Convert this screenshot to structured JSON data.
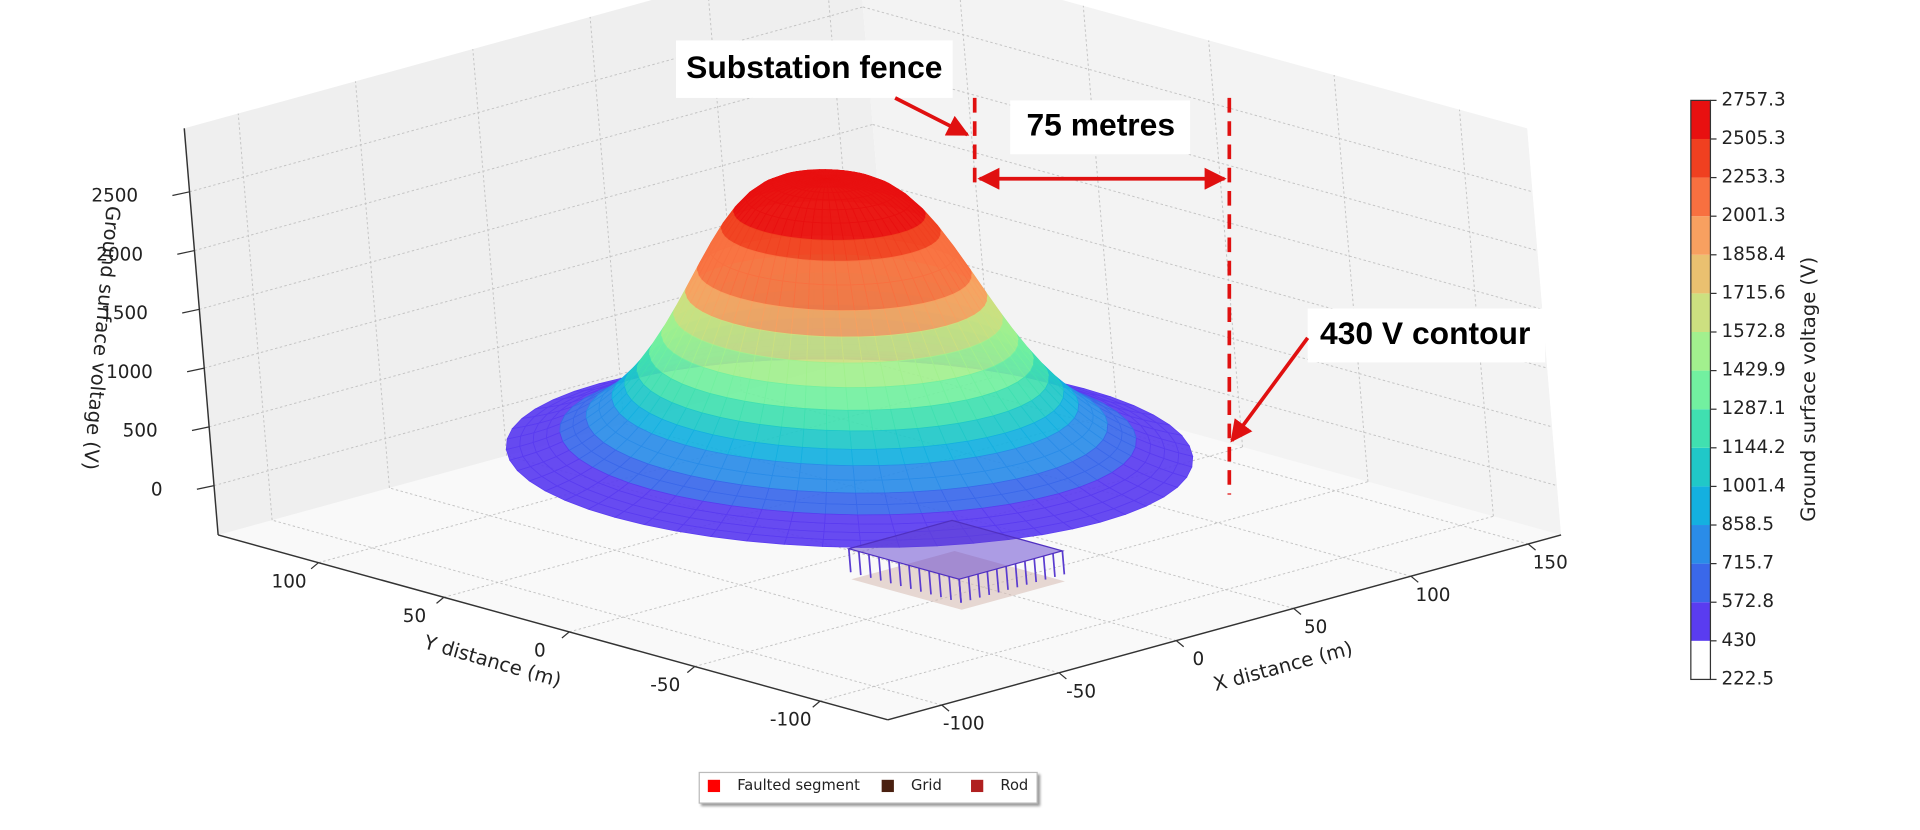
{
  "chart_data": {
    "type": "surface3d",
    "xlabel": "X distance (m)",
    "ylabel": "Y distance (m)",
    "zlabel": "Ground surface voltage (V)",
    "xlim": [
      -123,
      164
    ],
    "ylim": [
      -127,
      140
    ],
    "zlim": [
      -420,
      3040
    ],
    "xticks": [
      -100,
      -50,
      0,
      50,
      100,
      150
    ],
    "yticks": [
      -100,
      -50,
      0,
      50,
      100
    ],
    "zticks": [
      0,
      500,
      1000,
      1500,
      2000,
      2500
    ],
    "grid": true,
    "colorbar": {
      "label": "Ground surface voltage (V)",
      "ticks": [
        222.5,
        430,
        572.8,
        715.7,
        858.5,
        1001.4,
        1144.2,
        1287.1,
        1429.9,
        1572.8,
        1715.6,
        1858.4,
        2001.3,
        2253.3,
        2505.3,
        2757.3
      ],
      "colors": [
        "#ffffff",
        "#5a3cf0",
        "#3a68ea",
        "#2a8ce8",
        "#14b0e0",
        "#20c8c8",
        "#40e0b0",
        "#72f0a0",
        "#a2f08e",
        "#cce080",
        "#eac070",
        "#f8a060",
        "#f87040",
        "#f04020",
        "#e81010"
      ]
    },
    "legend": {
      "position": "lower center",
      "series": [
        {
          "name": "Faulted segment",
          "color": "#ff0000"
        },
        {
          "name": "Grid",
          "color": "#4a2010"
        },
        {
          "name": "Rod",
          "color": "#b02020"
        }
      ]
    },
    "annotations": [
      {
        "text": "Substation fence"
      },
      {
        "text": "75 metres"
      },
      {
        "text": "430 V contour"
      }
    ]
  }
}
